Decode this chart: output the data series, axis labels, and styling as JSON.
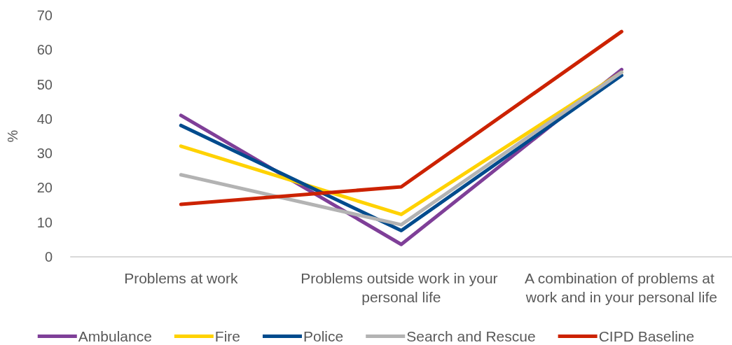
{
  "chart_data": {
    "type": "line",
    "ylabel": "%",
    "categories": [
      "Problems at work",
      "Problems outside work in your personal life",
      "A combination of problems at work and in your personal life"
    ],
    "series": [
      {
        "name": "Ambulance",
        "color": "#7f3f98",
        "values": [
          41,
          3.6,
          54.3
        ]
      },
      {
        "name": "Fire",
        "color": "#ffd200",
        "values": [
          32.1,
          12.3,
          53.5
        ]
      },
      {
        "name": "Police",
        "color": "#004b8d",
        "values": [
          38.1,
          7.6,
          52.6
        ]
      },
      {
        "name": "Search and Rescue",
        "color": "#b3b3b3",
        "values": [
          23.8,
          9.3,
          53.5
        ]
      },
      {
        "name": "CIPD Baseline",
        "color": "#cc2200",
        "values": [
          15.2,
          20.3,
          65.3
        ]
      }
    ],
    "ylim": [
      0,
      70
    ],
    "yticks": [
      0,
      10,
      20,
      30,
      40,
      50,
      60,
      70
    ],
    "grid": false,
    "legend": "bottom",
    "marker": "none",
    "line_style": "solid"
  }
}
